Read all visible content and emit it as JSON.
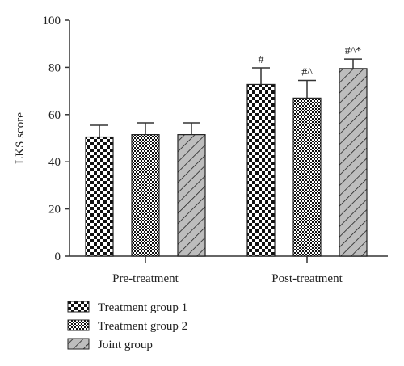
{
  "chart_data": {
    "type": "bar",
    "title": "",
    "xlabel": "",
    "ylabel": "LKS score",
    "ylim": [
      0,
      100
    ],
    "yticks": [
      "0",
      "20",
      "40",
      "60",
      "80",
      "100"
    ],
    "categories": [
      "Pre-treatment",
      "Post-treatment"
    ],
    "series": [
      {
        "name": "Treatment group 1",
        "pattern": "checkerboard-large",
        "values": [
          50.5,
          72.8
        ],
        "errors": [
          5.0,
          7.0
        ],
        "annotations": [
          "",
          "#"
        ]
      },
      {
        "name": "Treatment group 2",
        "pattern": "checkerboard-small",
        "values": [
          51.5,
          67.0
        ],
        "errors": [
          5.0,
          7.5
        ],
        "annotations": [
          "",
          "#^"
        ]
      },
      {
        "name": "Joint group",
        "pattern": "diagonal-hatch",
        "values": [
          51.5,
          79.5
        ],
        "errors": [
          5.0,
          4.0
        ],
        "annotations": [
          "",
          "#^*"
        ]
      }
    ],
    "grid": false,
    "legend_position": "bottom-left",
    "colors": {
      "axis": "#333333",
      "bar_outline": "#222222",
      "fill_dark": "#111111",
      "fill_light": "#ffffff",
      "hatch_bg": "#bdbdbd"
    }
  }
}
